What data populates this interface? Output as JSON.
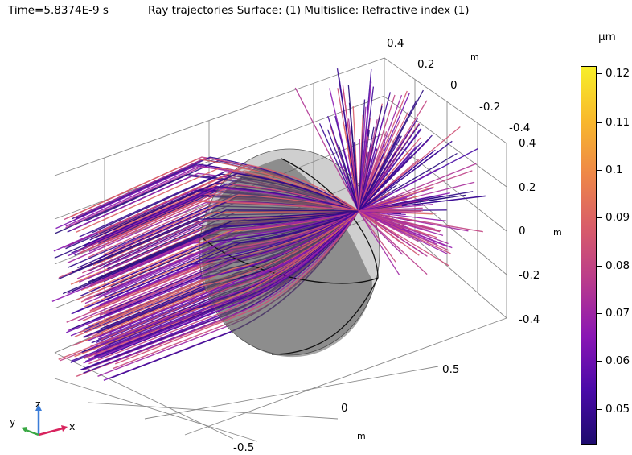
{
  "header": {
    "time_label": "Time=5.8374E-9 s",
    "plot_title": "Ray trajectories  Surface:  (1)  Multislice: Refractive index (1)"
  },
  "axes": {
    "unit": "m",
    "y_ticks": [
      "0.4",
      "0.2",
      "0",
      "-0.2",
      "-0.4"
    ],
    "z_ticks": [
      "0.4",
      "0.2",
      "0",
      "-0.2",
      "-0.4"
    ],
    "x_ticks": [
      "0.5",
      "0",
      "-0.5"
    ]
  },
  "colorbar": {
    "unit": "µm",
    "tick_labels": [
      "0.12",
      "0.11",
      "0.1",
      "0.09",
      "0.08",
      "0.07",
      "0.06",
      "0.05"
    ],
    "colormap": [
      "#1d0b6e",
      "#4a0aa8",
      "#8a16b4",
      "#b83a8d",
      "#d85c6a",
      "#ee8748",
      "#f8b82c",
      "#f7ef2a"
    ]
  },
  "triad": {
    "x_label": "x",
    "y_label": "y",
    "z_label": "z"
  }
}
